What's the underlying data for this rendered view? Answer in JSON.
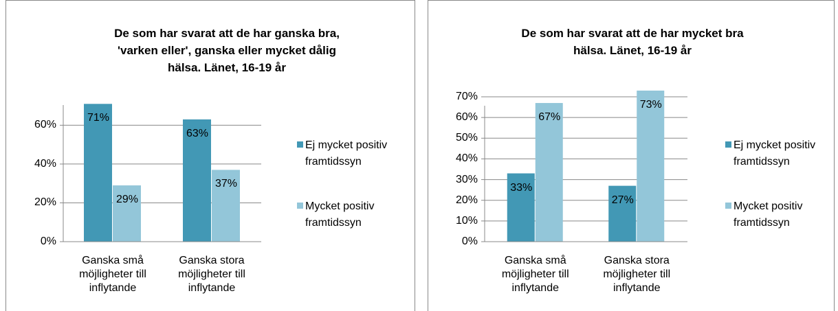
{
  "chart_data": [
    {
      "type": "bar",
      "title": "De som har svarat att de har ganska bra, 'varken eller', ganska eller mycket dålig hälsa. Länet, 16-19 år",
      "categories": [
        "Ganska små möjligheter till inflytande",
        "Ganska stora möjligheter till inflytande"
      ],
      "series": [
        {
          "name": "Ej mycket positiv framtidssyn",
          "color": "#4298b5",
          "values": [
            71,
            63
          ],
          "value_labels": [
            "71%",
            "63%"
          ]
        },
        {
          "name": "Mycket positiv framtidssyn",
          "color": "#93c6d9",
          "values": [
            29,
            37
          ],
          "value_labels": [
            "29%",
            "37%"
          ]
        }
      ],
      "ylim": [
        0,
        75
      ],
      "yticks": [
        {
          "value": 0,
          "label": "0%"
        },
        {
          "value": 20,
          "label": "20%"
        },
        {
          "value": 40,
          "label": "40%"
        },
        {
          "value": 60,
          "label": "60%"
        }
      ],
      "grid": true,
      "legend": "right"
    },
    {
      "type": "bar",
      "title": "De som har svarat att de har mycket bra hälsa. Länet, 16-19 år",
      "categories": [
        "Ganska små möjligheter till inflytande",
        "Ganska stora möjligheter till inflytande"
      ],
      "series": [
        {
          "name": "Ej mycket positiv framtidssyn",
          "color": "#4298b5",
          "values": [
            33,
            27
          ],
          "value_labels": [
            "33%",
            "27%"
          ]
        },
        {
          "name": "Mycket positiv framtidssyn",
          "color": "#93c6d9",
          "values": [
            67,
            73
          ],
          "value_labels": [
            "67%",
            "73%"
          ]
        }
      ],
      "ylim": [
        0,
        70
      ],
      "yticks": [
        {
          "value": 0,
          "label": "0%"
        },
        {
          "value": 10,
          "label": "10%"
        },
        {
          "value": 20,
          "label": "20%"
        },
        {
          "value": 30,
          "label": "30%"
        },
        {
          "value": 40,
          "label": "40%"
        },
        {
          "value": 50,
          "label": "50%"
        },
        {
          "value": 60,
          "label": "60%"
        },
        {
          "value": 70,
          "label": "70%"
        }
      ],
      "grid": true,
      "legend": "right"
    }
  ]
}
